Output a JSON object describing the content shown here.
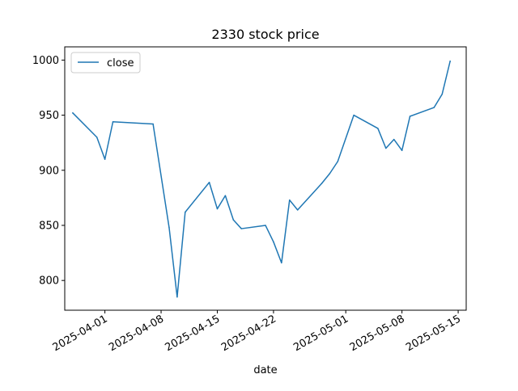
{
  "chart_data": {
    "type": "line",
    "title": "2330 stock price",
    "xlabel": "date",
    "ylabel": "",
    "xlim": [
      "2025-03-27",
      "2025-05-16"
    ],
    "ylim": [
      773,
      1012
    ],
    "grid": false,
    "legend_position": "top-left",
    "x_ticks": [
      "2025-04-01",
      "2025-04-08",
      "2025-04-15",
      "2025-04-22",
      "2025-05-01",
      "2025-05-08",
      "2025-05-15"
    ],
    "y_ticks": [
      800,
      850,
      900,
      950,
      1000
    ],
    "series": [
      {
        "name": "close",
        "color": "#1f77b4",
        "x": [
          "2025-03-28",
          "2025-03-31",
          "2025-04-01",
          "2025-04-02",
          "2025-04-07",
          "2025-04-09",
          "2025-04-10",
          "2025-04-11",
          "2025-04-14",
          "2025-04-15",
          "2025-04-16",
          "2025-04-17",
          "2025-04-18",
          "2025-04-21",
          "2025-04-22",
          "2025-04-23",
          "2025-04-24",
          "2025-04-25",
          "2025-04-28",
          "2025-04-29",
          "2025-04-30",
          "2025-05-02",
          "2025-05-05",
          "2025-05-06",
          "2025-05-07",
          "2025-05-08",
          "2025-05-09",
          "2025-05-12",
          "2025-05-13",
          "2025-05-14"
        ],
        "values": [
          952,
          930,
          910,
          944,
          942,
          848,
          785,
          862,
          889,
          865,
          877,
          855,
          847,
          850,
          835,
          816,
          873,
          864,
          888,
          897,
          908,
          950,
          938,
          920,
          928,
          918,
          949,
          957,
          969,
          999
        ]
      }
    ]
  }
}
